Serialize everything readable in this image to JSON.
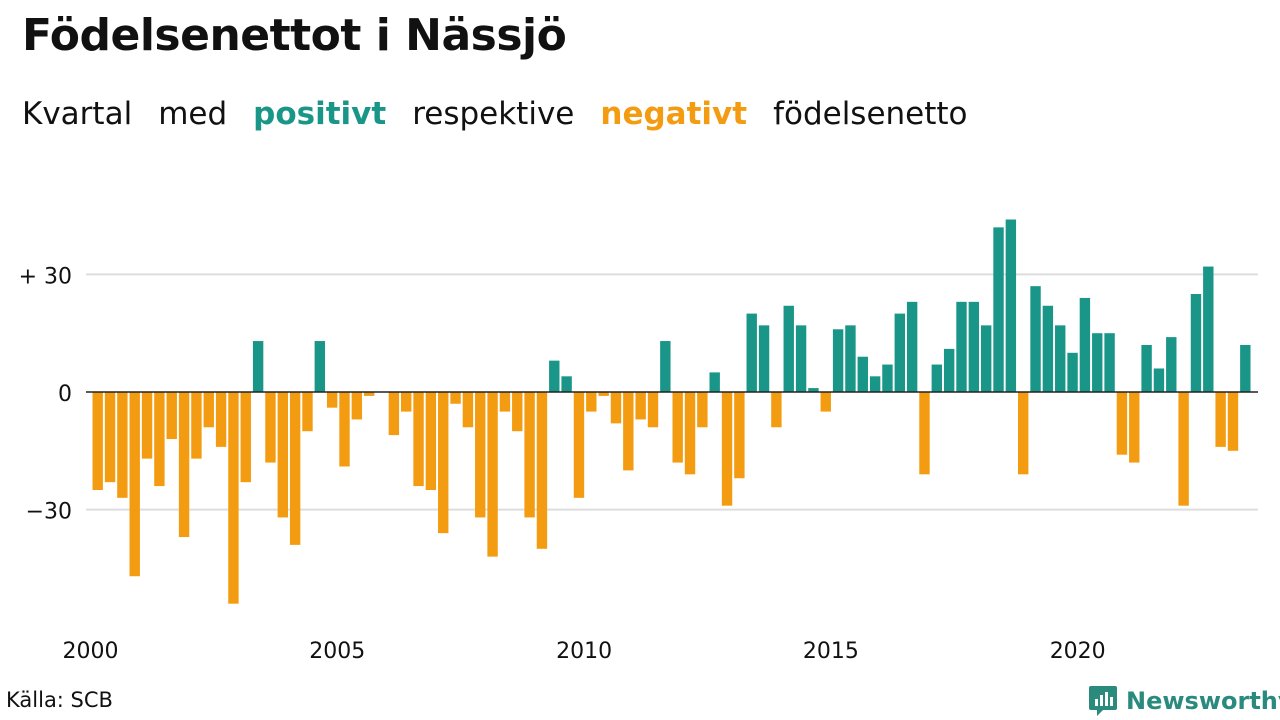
{
  "title": "Födelsenettot i Nässjö",
  "subtitle": {
    "w1": "Kvartal",
    "w2": "med",
    "positive": "positivt",
    "w3": "respektive",
    "negative": "negativt",
    "w4": "födelsenetto"
  },
  "source": "Källa: SCB",
  "brand": {
    "name": "Newsworthy",
    "icon": "newsworthy-logo-icon"
  },
  "colors": {
    "positive": "#1a9688",
    "negative": "#f39c12",
    "grid": "#dddddd",
    "zero": "#222222"
  },
  "chart_data": {
    "type": "bar",
    "title": "Födelsenettot i Nässjö",
    "xlabel": "",
    "ylabel": "",
    "x_start": "2000 Q1",
    "frequency": "quarterly",
    "x_ticks": [
      "2000",
      "2005",
      "2010",
      "2015",
      "2020"
    ],
    "y_ticks": [
      {
        "value": 30,
        "label": "+ 30"
      },
      {
        "value": 0,
        "label": "0"
      },
      {
        "value": -30,
        "label": "−30"
      }
    ],
    "ylim": [
      -58,
      45
    ],
    "grid": true,
    "values": [
      -25,
      -23,
      -27,
      -47,
      -17,
      -24,
      -12,
      -37,
      -17,
      -9,
      -14,
      -54,
      -23,
      13,
      -18,
      -32,
      -39,
      -10,
      13,
      -4,
      -19,
      -7,
      -1,
      0,
      -11,
      -5,
      -24,
      -25,
      -36,
      -3,
      -9,
      -32,
      -42,
      -5,
      -10,
      -32,
      -40,
      8,
      4,
      -27,
      -5,
      -1,
      -8,
      -20,
      -7,
      -9,
      13,
      -18,
      -21,
      -9,
      5,
      -29,
      -22,
      20,
      17,
      -9,
      22,
      17,
      1,
      -5,
      16,
      17,
      9,
      4,
      7,
      20,
      23,
      -21,
      7,
      11,
      23,
      23,
      17,
      42,
      44,
      -21,
      27,
      22,
      17,
      10,
      24,
      15,
      15,
      -16,
      -18,
      12,
      6,
      14,
      -29,
      25,
      32,
      -14,
      -15,
      12
    ]
  }
}
